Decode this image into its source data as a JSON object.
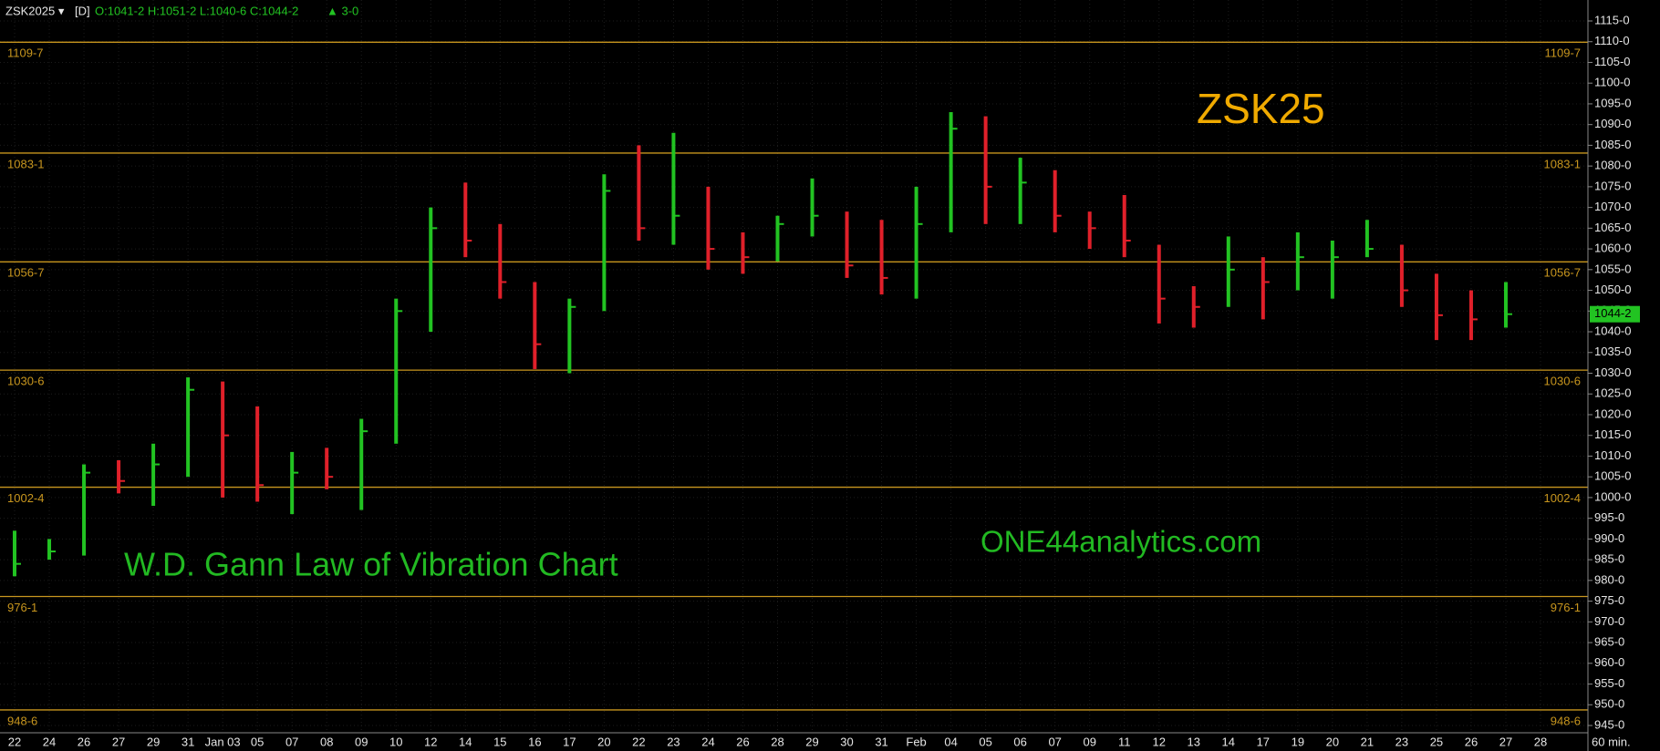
{
  "chart_data": {
    "type": "range-bar",
    "symbol": "ZSK2025 ▾",
    "interval": "[D]",
    "ohlc_text": "O:1041-2 H:1051-2 L:1040-6 C:1044-2",
    "change": "▲ 3-0",
    "title": "ZSK25",
    "annotations": [
      "W.D. Gann Law of Vibration Chart",
      "ONE44analytics.com"
    ],
    "bar_period": "60 min.",
    "categories": [
      "22",
      "24",
      "26",
      "27",
      "29",
      "31",
      "Jan 03",
      "05",
      "07",
      "08",
      "09",
      "10",
      "12",
      "14",
      "15",
      "16",
      "17",
      "20",
      "22",
      "23",
      "24",
      "26",
      "28",
      "29",
      "30",
      "31",
      "Feb",
      "04",
      "05",
      "06",
      "07",
      "09",
      "11",
      "12",
      "13",
      "14",
      "17",
      "19",
      "20",
      "21",
      "23",
      "25",
      "26",
      "27",
      "28"
    ],
    "high": [
      992,
      990,
      1008,
      1009,
      1013,
      1029,
      1028,
      1022,
      1011,
      1012,
      1019,
      1048,
      1070,
      1076,
      1066,
      1052,
      1048,
      1078,
      1085,
      1088,
      1075,
      1064,
      1068,
      1077,
      1069,
      1067,
      1075,
      1093,
      1092,
      1082,
      1079,
      1069,
      1073,
      1061,
      1051,
      1063,
      1058,
      1064,
      1062,
      1067,
      1061,
      1054,
      1050,
      1052,
      null
    ],
    "low": [
      981,
      985,
      986,
      1001,
      998,
      1005,
      1000,
      999,
      996,
      1002,
      997,
      1013,
      1040,
      1058,
      1048,
      1031,
      1030,
      1045,
      1062,
      1061,
      1055,
      1054,
      1057,
      1063,
      1053,
      1049,
      1048,
      1064,
      1066,
      1066,
      1064,
      1060,
      1058,
      1042,
      1041,
      1046,
      1043,
      1050,
      1048,
      1058,
      1046,
      1038,
      1038,
      1041,
      null
    ],
    "close": [
      984,
      987,
      1006,
      1004,
      1008,
      1026,
      1015,
      1003,
      1006,
      1005,
      1016,
      1045,
      1065,
      1062,
      1052,
      1037,
      1046,
      1074,
      1065,
      1068,
      1060,
      1058,
      1066,
      1068,
      1056,
      1053,
      1066,
      1089,
      1075,
      1076,
      1068,
      1065,
      1062,
      1048,
      1046,
      1055,
      1052,
      1058,
      1058,
      1060,
      1050,
      1044,
      1043,
      1044.25,
      null
    ],
    "up_color": "#22c322",
    "down_color": "#e0202a",
    "levels": [
      {
        "value": 1109.875,
        "label": "1109-7"
      },
      {
        "value": 1083.125,
        "label": "1083-1"
      },
      {
        "value": 1056.875,
        "label": "1056-7"
      },
      {
        "value": 1030.75,
        "label": "1030-6"
      },
      {
        "value": 1002.5,
        "label": "1002-4"
      },
      {
        "value": 976.125,
        "label": "976-1"
      },
      {
        "value": 948.75,
        "label": "948-6"
      }
    ],
    "level_color": "#c8961e",
    "last_price": {
      "value": 1044.25,
      "label": "1044-2"
    },
    "ylim": [
      945,
      1115
    ],
    "yticks": [
      {
        "value": 1115,
        "label": "1115-0"
      },
      {
        "value": 1110,
        "label": "1110-0"
      },
      {
        "value": 1105,
        "label": "1105-0"
      },
      {
        "value": 1100,
        "label": "1100-0"
      },
      {
        "value": 1095,
        "label": "1095-0"
      },
      {
        "value": 1090,
        "label": "1090-0"
      },
      {
        "value": 1085,
        "label": "1085-0"
      },
      {
        "value": 1080,
        "label": "1080-0"
      },
      {
        "value": 1075,
        "label": "1075-0"
      },
      {
        "value": 1070,
        "label": "1070-0"
      },
      {
        "value": 1065,
        "label": "1065-0"
      },
      {
        "value": 1060,
        "label": "1060-0"
      },
      {
        "value": 1055,
        "label": "1055-0"
      },
      {
        "value": 1050,
        "label": "1050-0"
      },
      {
        "value": 1045,
        "label": "1045-0"
      },
      {
        "value": 1040,
        "label": "1040-0"
      },
      {
        "value": 1035,
        "label": "1035-0"
      },
      {
        "value": 1030,
        "label": "1030-0"
      },
      {
        "value": 1025,
        "label": "1025-0"
      },
      {
        "value": 1020,
        "label": "1020-0"
      },
      {
        "value": 1015,
        "label": "1015-0"
      },
      {
        "value": 1010,
        "label": "1010-0"
      },
      {
        "value": 1005,
        "label": "1005-0"
      },
      {
        "value": 1000,
        "label": "1000-0"
      },
      {
        "value": 995,
        "label": "995-0"
      },
      {
        "value": 990,
        "label": "990-0"
      },
      {
        "value": 985,
        "label": "985-0"
      },
      {
        "value": 980,
        "label": "980-0"
      },
      {
        "value": 975,
        "label": "975-0"
      },
      {
        "value": 970,
        "label": "970-0"
      },
      {
        "value": 965,
        "label": "965-0"
      },
      {
        "value": 960,
        "label": "960-0"
      },
      {
        "value": 955,
        "label": "955-0"
      },
      {
        "value": 950,
        "label": "950-0"
      },
      {
        "value": 945,
        "label": "945-0"
      }
    ],
    "grid": true
  }
}
